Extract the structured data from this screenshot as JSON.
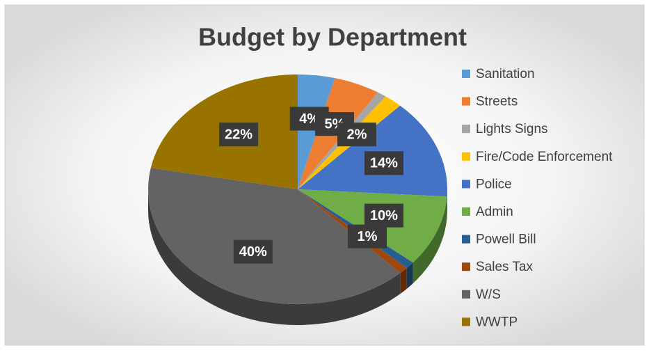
{
  "chart_data": {
    "type": "pie",
    "title": "Budget by Department",
    "categories": [
      "Sanitation",
      "Streets",
      "Lights Signs",
      "Fire/Code Enforcement",
      "Police",
      "Admin",
      "Powell Bill",
      "Sales Tax",
      "W/S",
      "WWTP"
    ],
    "values": [
      4,
      5,
      1,
      2,
      14,
      10,
      1,
      1,
      40,
      22
    ],
    "value_labels": [
      "4%",
      "5%",
      null,
      "2%",
      "14%",
      "10%",
      "1%",
      null,
      "40%",
      "22%"
    ],
    "colors": [
      "#5b9bd5",
      "#ed7d31",
      "#a5a5a5",
      "#ffc000",
      "#4472c4",
      "#70ad47",
      "#255e91",
      "#9e480e",
      "#636363",
      "#997300"
    ],
    "legend": "right"
  }
}
